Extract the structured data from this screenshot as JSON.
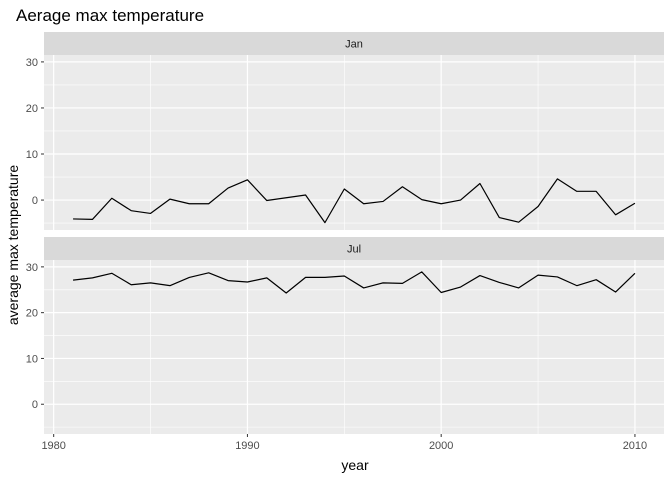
{
  "chart_data": {
    "type": "line",
    "title": "Aerage max temperature",
    "xlabel": "year",
    "ylabel": "average max temperature",
    "xlim": [
      1979.5,
      2011.5
    ],
    "ylim": [
      -6.5,
      31.5
    ],
    "x_ticks": [
      1980,
      1990,
      2000,
      2010
    ],
    "y_ticks": [
      0,
      10,
      20,
      30
    ],
    "grid": true,
    "panels": [
      {
        "strip": "Jan",
        "x": [
          1981,
          1982,
          1983,
          1984,
          1985,
          1986,
          1987,
          1988,
          1989,
          1990,
          1991,
          1992,
          1993,
          1994,
          1995,
          1996,
          1997,
          1998,
          1999,
          2000,
          2001,
          2002,
          2003,
          2004,
          2005,
          2006,
          2007,
          2008,
          2009,
          2010
        ],
        "values": [
          -4.1,
          -4.2,
          0.4,
          -2.3,
          -2.9,
          0.2,
          -0.8,
          -0.8,
          2.6,
          4.4,
          -0.1,
          0.5,
          1.1,
          -4.9,
          2.4,
          -0.8,
          -0.3,
          2.9,
          0.1,
          -0.8,
          0.0,
          3.6,
          -3.8,
          -4.8,
          -1.4,
          4.6,
          1.9,
          1.9,
          -3.2,
          -0.7
        ]
      },
      {
        "strip": "Jul",
        "x": [
          1981,
          1982,
          1983,
          1984,
          1985,
          1986,
          1987,
          1988,
          1989,
          1990,
          1991,
          1992,
          1993,
          1994,
          1995,
          1996,
          1997,
          1998,
          1999,
          2000,
          2001,
          2002,
          2003,
          2004,
          2005,
          2006,
          2007,
          2008,
          2009,
          2010
        ],
        "values": [
          27.1,
          27.6,
          28.6,
          26.1,
          26.5,
          25.9,
          27.7,
          28.7,
          27.0,
          26.7,
          27.6,
          24.3,
          27.7,
          27.7,
          28.0,
          25.4,
          26.5,
          26.4,
          28.9,
          24.4,
          25.6,
          28.1,
          26.6,
          25.4,
          28.2,
          27.8,
          25.9,
          27.2,
          24.5,
          28.6
        ]
      }
    ],
    "colors": {
      "panel_bg": "#ebebeb",
      "strip_bg": "#d9d9d9",
      "grid": "#ffffff",
      "line": "#000000"
    }
  }
}
